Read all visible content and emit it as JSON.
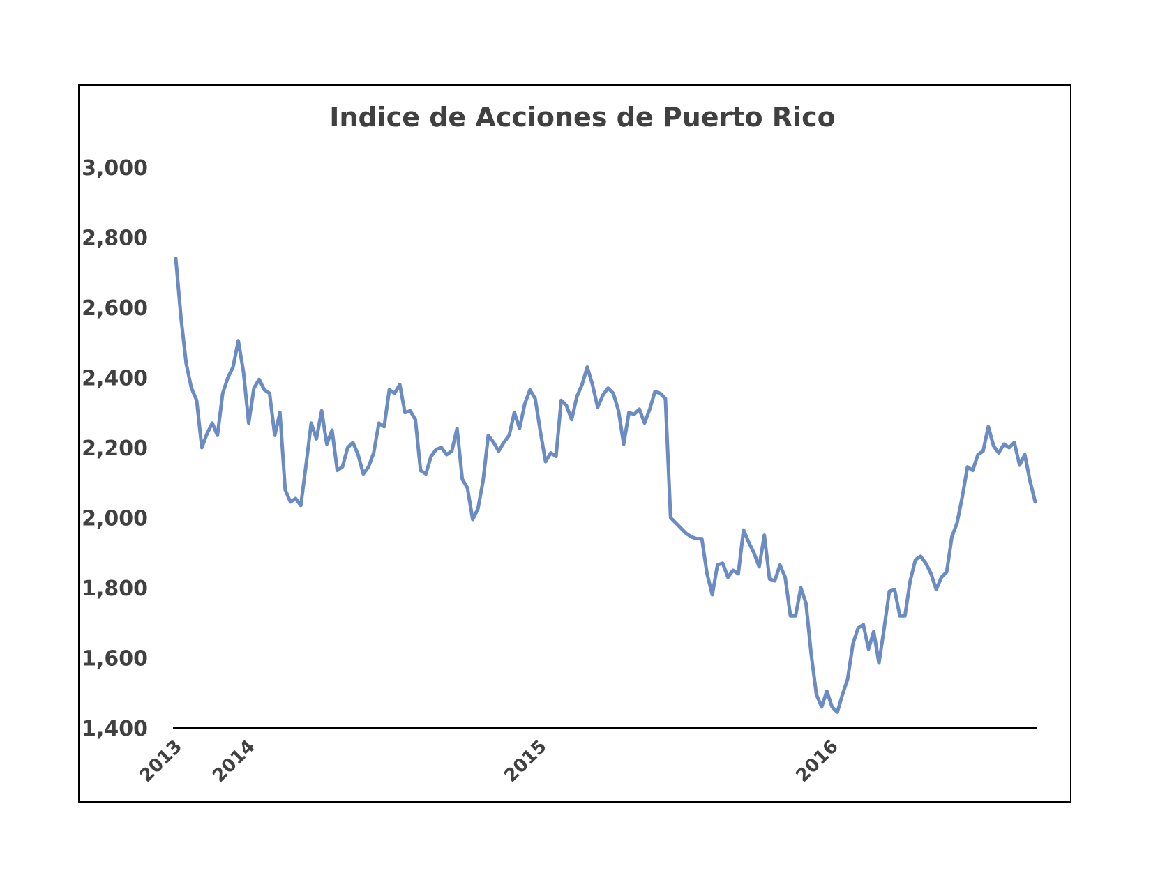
{
  "chart_data": {
    "type": "line",
    "title": "Indice de Acciones de Puerto Rico",
    "xlabel": "",
    "ylabel": "",
    "ylim": [
      1400,
      3000
    ],
    "y_ticks": [
      "1,400",
      "1,600",
      "1,800",
      "2,000",
      "2,200",
      "2,400",
      "2,600",
      "2,800",
      "3,000"
    ],
    "y_tick_values": [
      1400,
      1600,
      1800,
      2000,
      2200,
      2400,
      2600,
      2800,
      3000
    ],
    "x_ticks": [
      "2013",
      "2014",
      "2015",
      "2016"
    ],
    "x_tick_positions": [
      0,
      14,
      70,
      126
    ],
    "grid": false,
    "legend": "none",
    "line_color": "#6b8cc3",
    "series": [
      {
        "values": [
          2740,
          2570,
          2440,
          2370,
          2335,
          2200,
          2240,
          2270,
          2235,
          2355,
          2400,
          2430,
          2505,
          2415,
          2270,
          2370,
          2395,
          2365,
          2355,
          2235,
          2300,
          2080,
          2045,
          2055,
          2035,
          2150,
          2270,
          2225,
          2305,
          2210,
          2250,
          2135,
          2145,
          2200,
          2215,
          2180,
          2125,
          2145,
          2185,
          2270,
          2260,
          2365,
          2355,
          2380,
          2300,
          2305,
          2280,
          2135,
          2125,
          2175,
          2195,
          2200,
          2180,
          2190,
          2255,
          2110,
          2085,
          1995,
          2025,
          2105,
          2235,
          2215,
          2190,
          2215,
          2235,
          2300,
          2255,
          2325,
          2365,
          2340,
          2245,
          2160,
          2185,
          2175,
          2335,
          2320,
          2280,
          2345,
          2380,
          2430,
          2380,
          2315,
          2350,
          2370,
          2355,
          2305,
          2210,
          2300,
          2295,
          2310,
          2270,
          2310,
          2360,
          2355,
          2340,
          2000,
          1985,
          1970,
          1955,
          1945,
          1940,
          1940,
          1840,
          1780,
          1865,
          1870,
          1830,
          1850,
          1840,
          1965,
          1930,
          1900,
          1860,
          1950,
          1825,
          1820,
          1865,
          1830,
          1720,
          1720,
          1800,
          1755,
          1610,
          1495,
          1460,
          1505,
          1460,
          1445,
          1495,
          1540,
          1640,
          1685,
          1695,
          1625,
          1675,
          1585,
          1685,
          1790,
          1795,
          1720,
          1720,
          1820,
          1880,
          1890,
          1870,
          1840,
          1795,
          1830,
          1845,
          1945,
          1985,
          2060,
          2145,
          2135,
          2180,
          2190,
          2260,
          2205,
          2185,
          2210,
          2200,
          2215,
          2150,
          2180,
          2105,
          2045
        ]
      }
    ]
  }
}
